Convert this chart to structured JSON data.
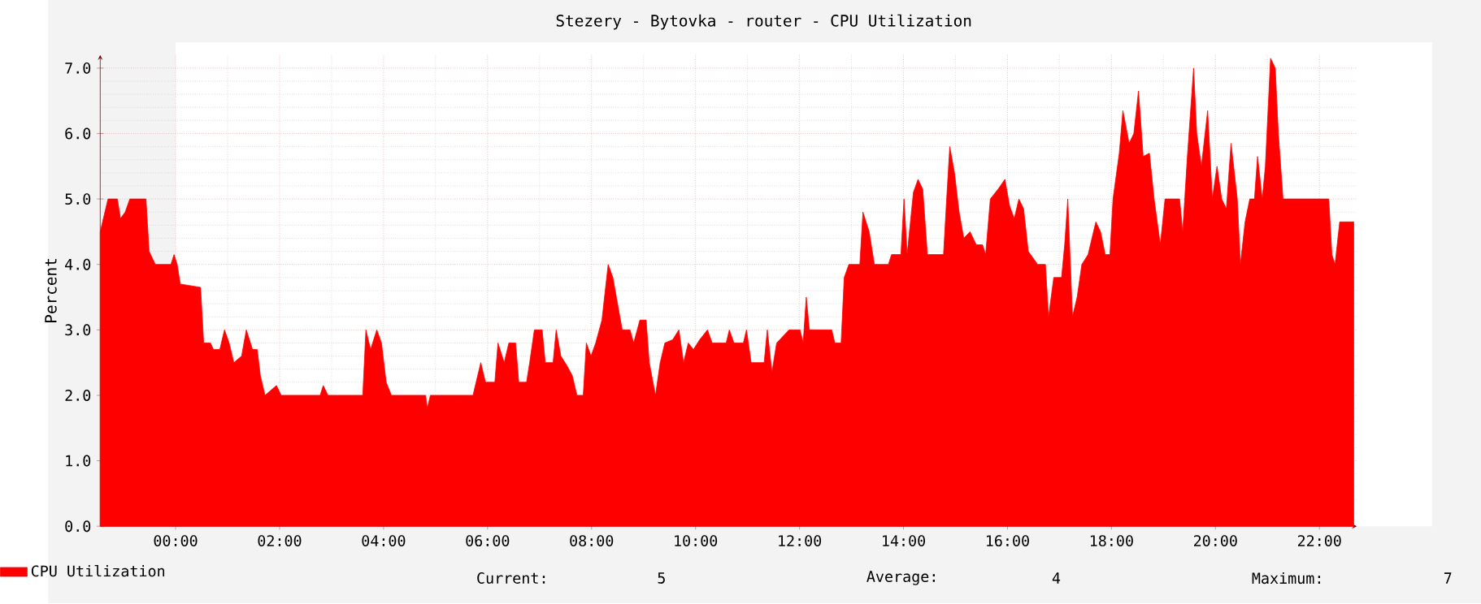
{
  "chart_data": {
    "type": "area",
    "title": "Stezery - Bytovka - router - CPU Utilization",
    "ylabel": "Percent",
    "xlim": [
      -1.45,
      22.72
    ],
    "ylim": [
      0,
      7.2
    ],
    "xticks": [
      {
        "value": 0,
        "label": "00:00"
      },
      {
        "value": 2,
        "label": "02:00"
      },
      {
        "value": 4,
        "label": "04:00"
      },
      {
        "value": 6,
        "label": "06:00"
      },
      {
        "value": 8,
        "label": "08:00"
      },
      {
        "value": 10,
        "label": "10:00"
      },
      {
        "value": 12,
        "label": "12:00"
      },
      {
        "value": 14,
        "label": "14:00"
      },
      {
        "value": 16,
        "label": "16:00"
      },
      {
        "value": 18,
        "label": "18:00"
      },
      {
        "value": 20,
        "label": "20:00"
      },
      {
        "value": 22,
        "label": "22:00"
      }
    ],
    "yticks": [
      {
        "value": 0,
        "label": "0.0"
      },
      {
        "value": 1,
        "label": "1.0"
      },
      {
        "value": 2,
        "label": "2.0"
      },
      {
        "value": 3,
        "label": "3.0"
      },
      {
        "value": 4,
        "label": "4.0"
      },
      {
        "value": 5,
        "label": "5.0"
      },
      {
        "value": 6,
        "label": "6.0"
      },
      {
        "value": 7,
        "label": "7.0"
      }
    ],
    "grid": true,
    "legend": "bottom left",
    "annotations": [
      "Current:",
      "5",
      "Average:",
      "4",
      "Maximum:",
      "7"
    ],
    "series": [
      {
        "name": "CPU Utilization",
        "color": "#ff0000",
        "x": [
          -1.45,
          -1.3,
          -1.12,
          -1.06,
          -0.97,
          -0.88,
          -0.57,
          -0.51,
          -0.39,
          -0.09,
          -0.03,
          0.03,
          0.09,
          0.48,
          0.54,
          0.67,
          0.73,
          0.85,
          0.94,
          1.03,
          1.12,
          1.27,
          1.36,
          1.48,
          1.57,
          1.63,
          1.72,
          1.94,
          2.03,
          2.78,
          2.84,
          2.93,
          3.6,
          3.66,
          3.75,
          3.87,
          3.96,
          4.05,
          4.15,
          4.81,
          4.84,
          4.9,
          5.72,
          5.78,
          5.87,
          5.96,
          6.14,
          6.2,
          6.32,
          6.41,
          6.54,
          6.6,
          6.75,
          6.81,
          6.9,
          7.05,
          7.11,
          7.26,
          7.32,
          7.41,
          7.53,
          7.63,
          7.72,
          7.84,
          7.9,
          7.99,
          8.08,
          8.2,
          8.32,
          8.41,
          8.5,
          8.59,
          8.74,
          8.81,
          8.93,
          9.05,
          9.11,
          9.23,
          9.32,
          9.41,
          9.56,
          9.68,
          9.77,
          9.86,
          9.96,
          10.08,
          10.23,
          10.32,
          10.59,
          10.65,
          10.74,
          10.92,
          10.98,
          11.07,
          11.32,
          11.38,
          11.47,
          11.56,
          11.8,
          12.01,
          12.07,
          12.13,
          12.19,
          12.62,
          12.68,
          12.8,
          12.86,
          12.95,
          13.16,
          13.22,
          13.34,
          13.44,
          13.71,
          13.77,
          13.95,
          14.01,
          14.07,
          14.19,
          14.28,
          14.37,
          14.46,
          14.77,
          14.83,
          14.89,
          14.98,
          15.07,
          15.16,
          15.28,
          15.4,
          15.52,
          15.58,
          15.67,
          15.82,
          15.95,
          16.04,
          16.13,
          16.22,
          16.31,
          16.4,
          16.58,
          16.73,
          16.79,
          16.89,
          17.04,
          17.1,
          17.16,
          17.25,
          17.34,
          17.43,
          17.55,
          17.7,
          17.79,
          17.88,
          17.97,
          18.03,
          18.15,
          18.22,
          18.34,
          18.43,
          18.52,
          18.61,
          18.73,
          18.82,
          18.94,
          19.03,
          19.31,
          19.37,
          19.46,
          19.58,
          19.64,
          19.73,
          19.85,
          19.94,
          20.03,
          20.12,
          20.21,
          20.3,
          20.42,
          20.48,
          20.57,
          20.66,
          20.75,
          20.81,
          20.9,
          20.96,
          21.06,
          21.15,
          21.21,
          21.3,
          22.18,
          22.24,
          22.3,
          22.39,
          22.66
        ],
        "values": [
          4.5,
          5.0,
          5.0,
          4.7,
          4.8,
          5.0,
          5.0,
          4.2,
          4.0,
          4.0,
          4.15,
          4.0,
          3.7,
          3.65,
          2.8,
          2.8,
          2.7,
          2.7,
          3.0,
          2.8,
          2.5,
          2.6,
          3.0,
          2.7,
          2.7,
          2.3,
          2.0,
          2.15,
          2.0,
          2.0,
          2.15,
          2.0,
          2.0,
          3.0,
          2.7,
          3.0,
          2.8,
          2.2,
          2.0,
          2.0,
          1.8,
          2.0,
          2.0,
          2.2,
          2.5,
          2.2,
          2.2,
          2.8,
          2.5,
          2.8,
          2.8,
          2.2,
          2.2,
          2.5,
          3.0,
          3.0,
          2.5,
          2.5,
          3.0,
          2.6,
          2.45,
          2.3,
          2.0,
          2.0,
          2.8,
          2.6,
          2.8,
          3.15,
          4.0,
          3.8,
          3.4,
          3.0,
          3.0,
          2.8,
          3.15,
          3.15,
          2.5,
          2.0,
          2.5,
          2.8,
          2.85,
          3.0,
          2.5,
          2.8,
          2.7,
          2.85,
          3.0,
          2.8,
          2.8,
          3.0,
          2.8,
          2.8,
          3.0,
          2.5,
          2.5,
          3.0,
          2.35,
          2.8,
          3.0,
          3.0,
          2.8,
          3.5,
          3.0,
          3.0,
          2.8,
          2.8,
          3.8,
          4.0,
          4.0,
          4.8,
          4.5,
          4.0,
          4.0,
          4.15,
          4.15,
          5.0,
          4.15,
          5.1,
          5.3,
          5.15,
          4.15,
          4.15,
          5.0,
          5.8,
          5.4,
          4.8,
          4.4,
          4.5,
          4.3,
          4.3,
          4.15,
          5.0,
          5.15,
          5.3,
          4.9,
          4.7,
          5.0,
          4.85,
          4.2,
          4.0,
          4.0,
          3.2,
          3.8,
          3.8,
          4.3,
          5.0,
          3.2,
          3.5,
          4.0,
          4.15,
          4.65,
          4.5,
          4.15,
          4.15,
          5.0,
          5.7,
          6.35,
          5.85,
          6.0,
          6.65,
          5.65,
          5.7,
          5.0,
          4.3,
          5.0,
          5.0,
          4.5,
          5.65,
          7.0,
          6.0,
          5.5,
          6.35,
          5.0,
          5.5,
          5.0,
          4.85,
          5.85,
          5.0,
          4.0,
          4.65,
          5.0,
          5.0,
          5.65,
          5.0,
          5.5,
          7.15,
          7.0,
          6.0,
          5.0,
          5.0,
          4.15,
          4.0,
          4.65,
          4.65
        ]
      }
    ]
  }
}
